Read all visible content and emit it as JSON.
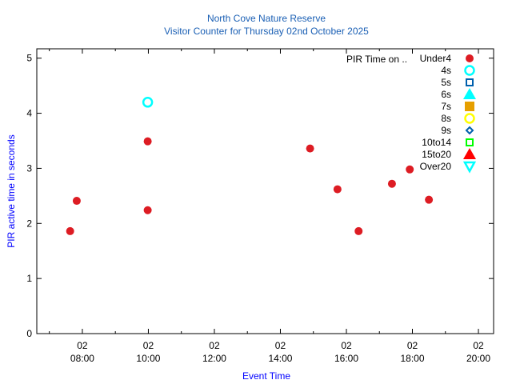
{
  "chart_data": {
    "type": "scatter",
    "title": "North Cove Nature Reserve",
    "subtitle": "Visitor Counter for Thursday 02nd October 2025",
    "xlabel": "Event Time",
    "ylabel": "PIR active time in seconds",
    "xlim_hours": [
      6.62,
      20.46
    ],
    "ylim": [
      0,
      5.17
    ],
    "yticks": [
      0,
      1,
      2,
      3,
      4,
      5
    ],
    "xticks": [
      {
        "hour": 8,
        "day": "02",
        "time": "08:00"
      },
      {
        "hour": 10,
        "day": "02",
        "time": "10:00"
      },
      {
        "hour": 12,
        "day": "02",
        "time": "12:00"
      },
      {
        "hour": 14,
        "day": "02",
        "time": "14:00"
      },
      {
        "hour": 16,
        "day": "02",
        "time": "16:00"
      },
      {
        "hour": 18,
        "day": "02",
        "time": "18:00"
      },
      {
        "hour": 20,
        "day": "02",
        "time": "20:00"
      }
    ],
    "x_minor_ticks_hours": [
      7,
      9,
      11,
      13,
      15,
      17,
      19
    ],
    "grid": false,
    "legend_position": "top-right",
    "legend_title": "PIR Time on ..",
    "series": [
      {
        "name": "Under4",
        "marker": "circle-filled",
        "color": "#dd1c23",
        "points": [
          [
            7.63,
            1.86
          ],
          [
            7.83,
            2.41
          ],
          [
            9.98,
            3.49
          ],
          [
            9.98,
            2.24
          ],
          [
            14.9,
            3.36
          ],
          [
            15.73,
            2.62
          ],
          [
            16.37,
            1.86
          ],
          [
            17.38,
            2.72
          ],
          [
            17.92,
            2.98
          ],
          [
            18.5,
            2.43
          ]
        ]
      },
      {
        "name": "4s",
        "marker": "circle-open",
        "color": "#00ffff",
        "points": [
          [
            9.98,
            4.2
          ]
        ]
      },
      {
        "name": "5s",
        "marker": "square-open",
        "color": "#0060ad",
        "points": []
      },
      {
        "name": "6s",
        "marker": "triangle-filled",
        "color": "#00ffff",
        "points": []
      },
      {
        "name": "7s",
        "marker": "square-filled",
        "color": "#e69f00",
        "points": []
      },
      {
        "name": "8s",
        "marker": "circle-open",
        "color": "#ffff00",
        "points": []
      },
      {
        "name": "9s",
        "marker": "diamond-open",
        "color": "#0060ad",
        "points": []
      },
      {
        "name": "10to14",
        "marker": "square-open",
        "color": "#00ff00",
        "points": []
      },
      {
        "name": "15to20",
        "marker": "triangle-filled",
        "color": "#ff0000",
        "points": []
      },
      {
        "name": "Over20",
        "marker": "triangle-down-open",
        "color": "#00ffff",
        "points": []
      }
    ]
  }
}
